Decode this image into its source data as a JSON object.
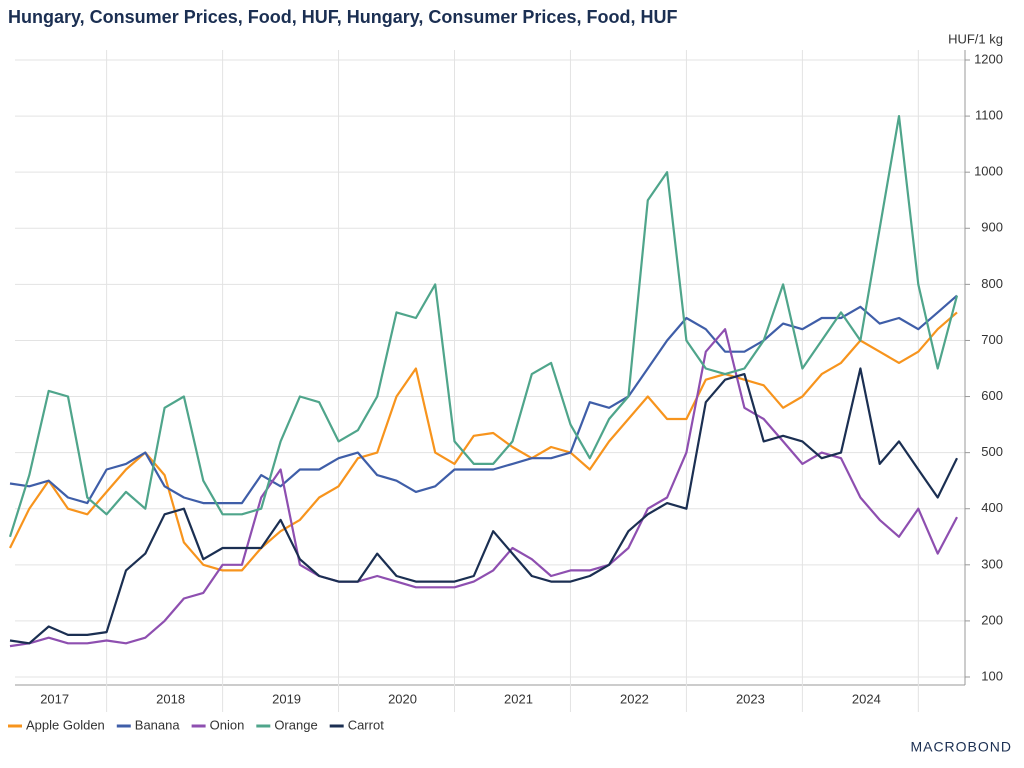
{
  "chart_data": {
    "type": "line",
    "title": "Hungary, Consumer Prices, Food, HUF, Hungary, Consumer Prices, Food, HUF",
    "y_unit": "HUF/1 kg",
    "brand": "MACROBOND",
    "categories": [
      null,
      null,
      "2017",
      null,
      null,
      null,
      null,
      null,
      "2018",
      null,
      null,
      null,
      null,
      null,
      "2019",
      null,
      null,
      null,
      null,
      null,
      "2020",
      null,
      null,
      null,
      null,
      null,
      "2021",
      null,
      null,
      null,
      null,
      null,
      "2022",
      null,
      null,
      null,
      null,
      null,
      "2023",
      null,
      null,
      null,
      null,
      null,
      "2024",
      null,
      null,
      null,
      null,
      null
    ],
    "series": [
      {
        "name": "Apple Golden",
        "color": "#f7941d",
        "values": [
          330,
          400,
          450,
          400,
          390,
          430,
          470,
          500,
          460,
          340,
          300,
          290,
          290,
          330,
          360,
          380,
          420,
          440,
          490,
          500,
          600,
          650,
          500,
          480,
          530,
          535,
          510,
          490,
          510,
          500,
          470,
          520,
          560,
          600,
          560,
          560,
          630,
          640,
          630,
          620,
          580,
          600,
          640,
          660,
          700,
          680,
          660,
          680,
          720,
          750
        ]
      },
      {
        "name": "Banana",
        "color": "#3f5ea8",
        "values": [
          445,
          440,
          450,
          420,
          410,
          470,
          480,
          500,
          440,
          420,
          410,
          410,
          410,
          460,
          440,
          470,
          470,
          490,
          500,
          460,
          450,
          430,
          440,
          470,
          470,
          470,
          480,
          490,
          490,
          500,
          590,
          580,
          600,
          650,
          700,
          740,
          720,
          680,
          680,
          700,
          730,
          720,
          740,
          740,
          760,
          730,
          740,
          720,
          750,
          780
        ]
      },
      {
        "name": "Onion",
        "color": "#8e4fb0",
        "values": [
          155,
          160,
          170,
          160,
          160,
          165,
          160,
          170,
          200,
          240,
          250,
          300,
          300,
          420,
          470,
          300,
          280,
          270,
          270,
          280,
          270,
          260,
          260,
          260,
          270,
          290,
          330,
          310,
          280,
          290,
          290,
          300,
          330,
          400,
          420,
          500,
          680,
          720,
          580,
          560,
          520,
          480,
          500,
          490,
          420,
          380,
          350,
          400,
          320,
          385
        ]
      },
      {
        "name": "Orange",
        "color": "#4fa58b",
        "values": [
          350,
          460,
          610,
          600,
          420,
          390,
          430,
          400,
          580,
          600,
          450,
          390,
          390,
          400,
          520,
          600,
          590,
          520,
          540,
          600,
          750,
          740,
          800,
          520,
          480,
          480,
          520,
          640,
          660,
          550,
          490,
          560,
          600,
          950,
          1000,
          700,
          650,
          640,
          650,
          700,
          800,
          650,
          700,
          750,
          700,
          900,
          1100,
          800,
          650,
          780
        ]
      },
      {
        "name": "Carrot",
        "color": "#1b2f52",
        "values": [
          165,
          160,
          190,
          175,
          175,
          180,
          290,
          320,
          390,
          400,
          310,
          330,
          330,
          330,
          380,
          310,
          280,
          270,
          270,
          320,
          280,
          270,
          270,
          270,
          280,
          360,
          320,
          280,
          270,
          270,
          280,
          300,
          360,
          390,
          410,
          400,
          590,
          630,
          640,
          520,
          530,
          520,
          490,
          500,
          650,
          480,
          520,
          470,
          420,
          490
        ]
      }
    ],
    "ylim": [
      100,
      1200
    ],
    "yticks": [
      100,
      200,
      300,
      400,
      500,
      600,
      700,
      800,
      900,
      1000,
      1100,
      1200
    ],
    "grid": true,
    "legend": "bottom"
  }
}
